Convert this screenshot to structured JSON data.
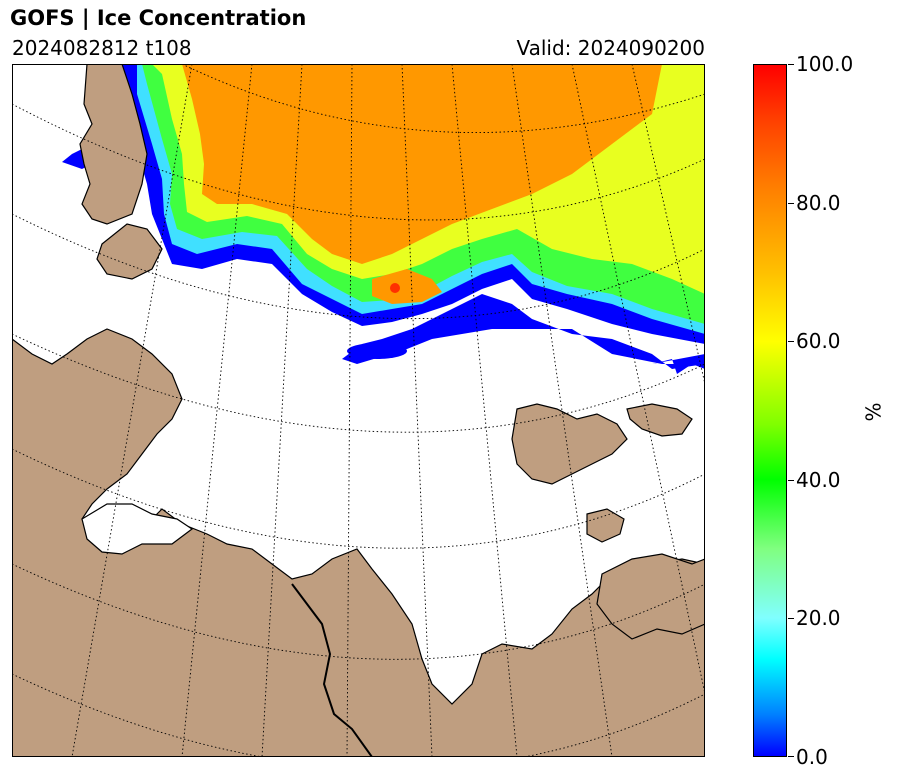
{
  "header": {
    "title": "GOFS  |  Ice Concentration",
    "run": "2024082812 t108",
    "valid": "Valid: 2024090200"
  },
  "colors": {
    "land": "#bf9e80",
    "ocean": "#ffffff",
    "ice_low": "#0000ff",
    "ice_high": "#ff0000"
  },
  "colorbar": {
    "unit": "%",
    "min": 0,
    "max": 100,
    "ticks": [
      {
        "value": 0,
        "label": "0.0"
      },
      {
        "value": 20,
        "label": "20.0"
      },
      {
        "value": 40,
        "label": "40.0"
      },
      {
        "value": 60,
        "label": "60.0"
      },
      {
        "value": 80,
        "label": "80.0"
      },
      {
        "value": 100,
        "label": "100.0"
      }
    ]
  }
}
